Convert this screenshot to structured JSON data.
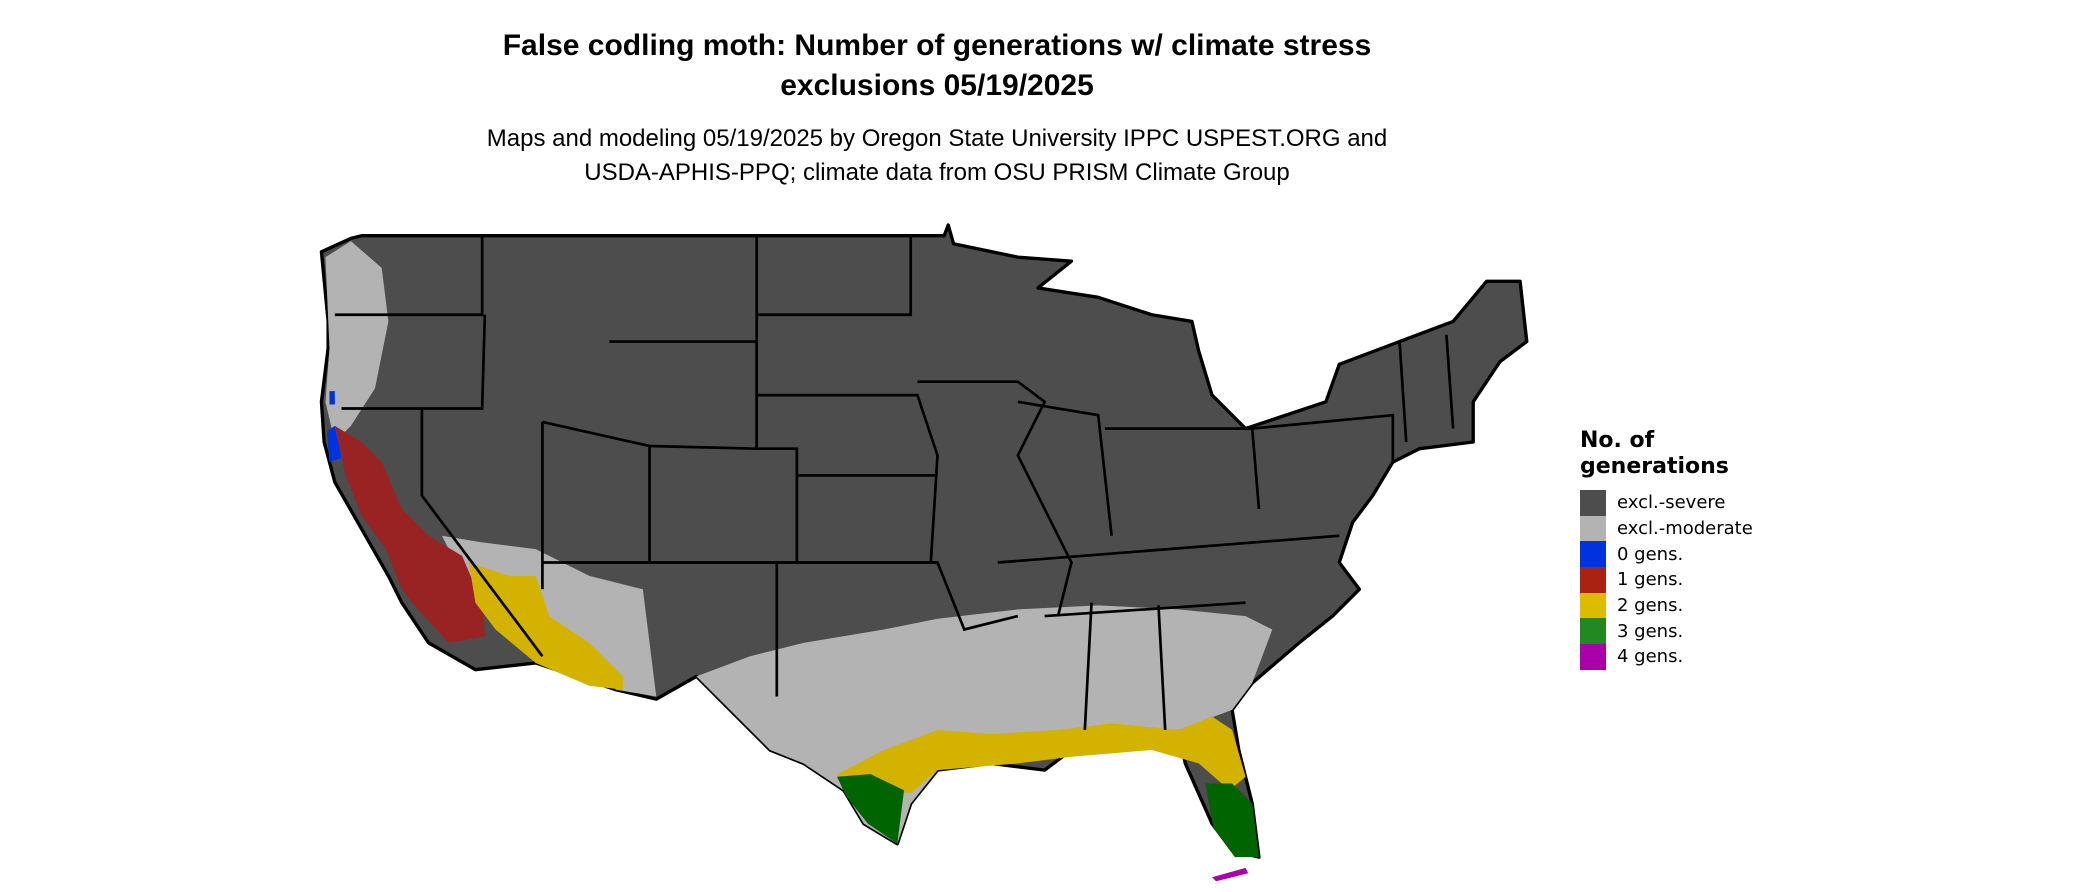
{
  "title_line1": "False codling moth: Number of generations w/ climate stress",
  "title_line2": "exclusions 05/19/2025",
  "subtitle_line1": "Maps and modeling 05/19/2025 by Oregon State University IPPC USPEST.ORG and",
  "subtitle_line2": "USDA-APHIS-PPQ; climate data from OSU PRISM Climate Group",
  "legend": {
    "title_line1": "No. of",
    "title_line2": "generations",
    "items": [
      {
        "label": "excl.-severe",
        "color": "#4d4d4d"
      },
      {
        "label": "excl.-moderate",
        "color": "#b3b3b3"
      },
      {
        "label": "0 gens.",
        "color": "#0033dd"
      },
      {
        "label": "1 gens.",
        "color": "#aa2211"
      },
      {
        "label": "2 gens.",
        "color": "#ddbb00"
      },
      {
        "label": "3 gens.",
        "color": "#228822"
      },
      {
        "label": "4 gens.",
        "color": "#aa00aa"
      }
    ]
  },
  "map": {
    "region": "Contiguous United States",
    "border_color": "#000000"
  }
}
